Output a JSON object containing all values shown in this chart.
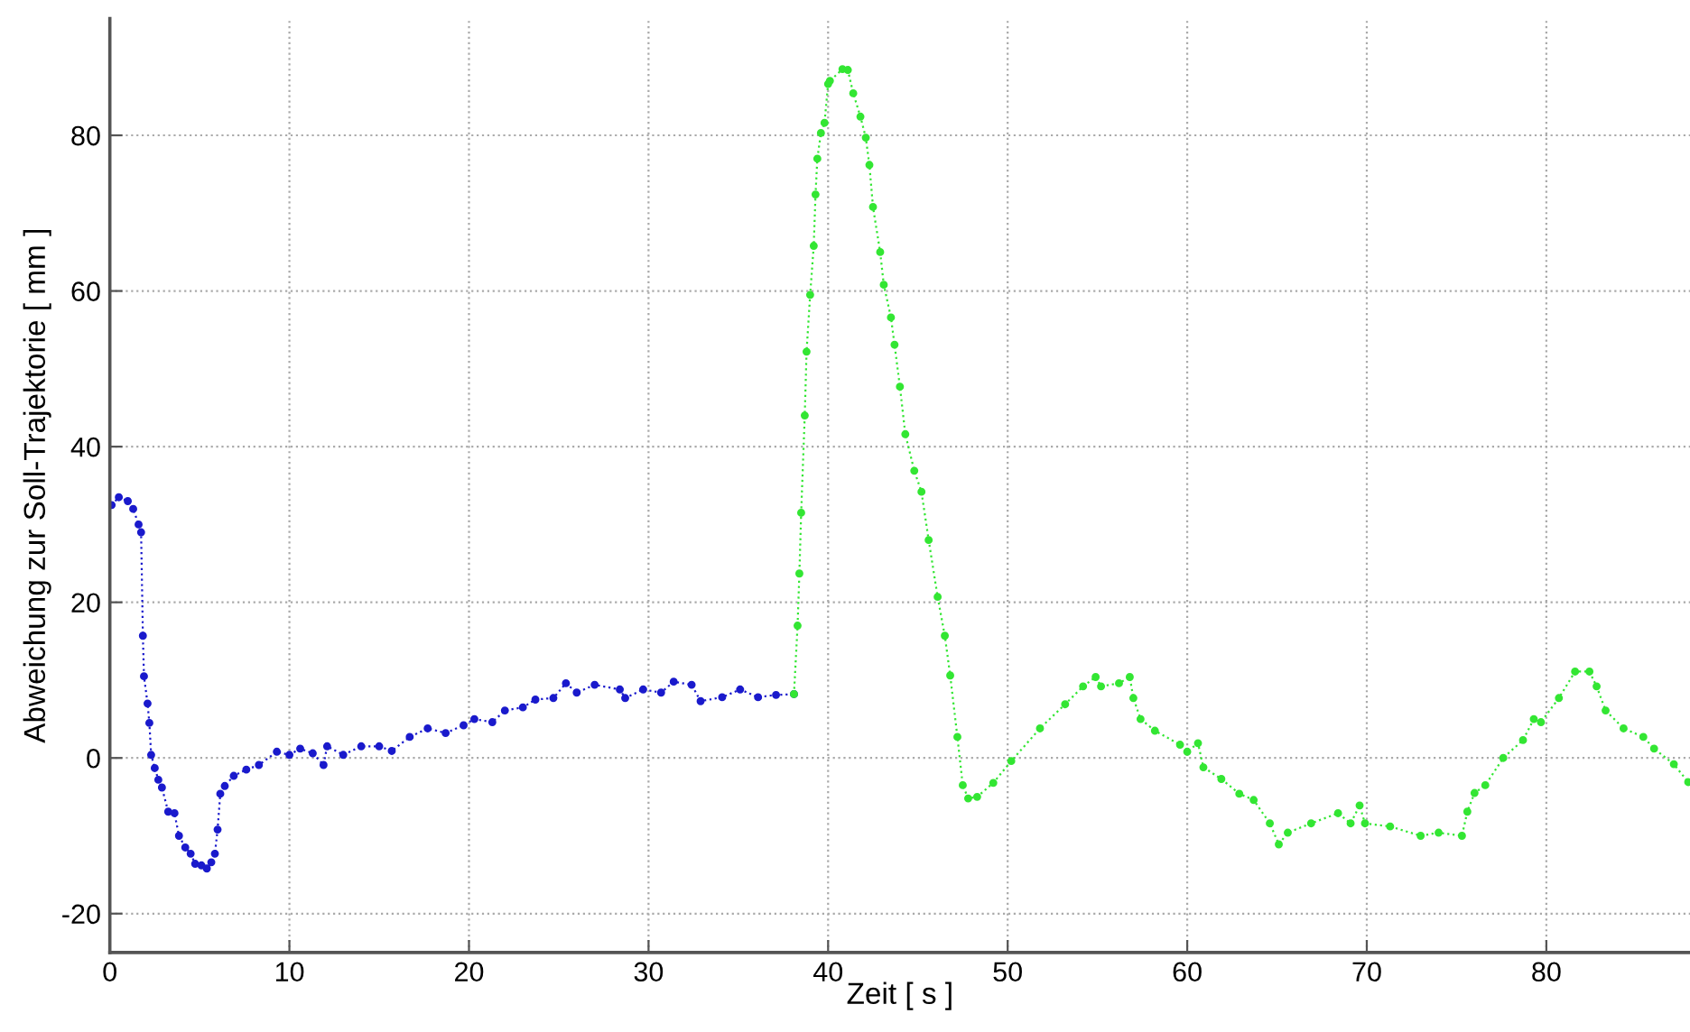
{
  "chart_data": {
    "type": "line",
    "xlabel": "Zeit [ s ]",
    "ylabel": "Abweichung zur Soll-Trajektorie [ mm ]",
    "xlim": [
      0,
      88
    ],
    "xticks": [
      0,
      10,
      20,
      30,
      40,
      50,
      60,
      70,
      80
    ],
    "ylim": [
      -25,
      95
    ],
    "yticks": [
      -20,
      0,
      20,
      40,
      60,
      80
    ],
    "grid": true,
    "marker": "circle",
    "line_style": "dotted",
    "series": [
      {
        "color": "#1a1acc",
        "x": [
          0.1,
          0.5,
          1.0,
          1.3,
          1.6,
          1.74,
          1.84,
          1.9,
          2.1,
          2.2,
          2.3,
          2.5,
          2.7,
          2.9,
          3.25,
          3.6,
          3.85,
          4.2,
          4.5,
          4.75,
          5.1,
          5.4,
          5.65,
          5.85,
          6.0,
          6.15,
          6.4,
          6.9,
          7.6,
          8.3,
          9.3,
          10.0,
          10.6,
          11.3,
          11.9,
          12.1,
          13.0,
          14.0,
          15.0,
          15.7,
          16.7,
          17.7,
          18.7,
          19.7,
          20.3,
          21.3,
          22.0,
          23.0,
          23.7,
          24.7,
          25.4,
          26.0,
          27.0,
          28.4,
          28.7,
          29.7,
          30.7,
          31.4,
          32.4,
          32.9,
          34.1,
          35.1,
          36.1,
          37.1,
          38.1
        ],
        "values": [
          32.5,
          33.5,
          33,
          32,
          30,
          29,
          15.7,
          10.5,
          7,
          4.5,
          0.4,
          -1.3,
          -2.8,
          -3.8,
          -6.9,
          -7.1,
          -10,
          -11.5,
          -12.3,
          -13.6,
          -13.8,
          -14.2,
          -13.4,
          -12.3,
          -9.2,
          -4.6,
          -3.6,
          -2.3,
          -1.5,
          -0.9,
          0.8,
          0.4,
          1.2,
          0.6,
          -0.9,
          1.5,
          0.4,
          1.5,
          1.5,
          0.9,
          2.7,
          3.8,
          3.2,
          4.2,
          5,
          4.6,
          6.1,
          6.5,
          7.5,
          7.7,
          9.6,
          8.4,
          9.4,
          8.8,
          7.7,
          8.8,
          8.4,
          9.8,
          9.4,
          7.3,
          7.8,
          8.8,
          7.8,
          8.1,
          8.2
        ]
      },
      {
        "color": "#33e633",
        "x": [
          38.1,
          38.3,
          38.4,
          38.5,
          38.7,
          38.8,
          39.0,
          39.2,
          39.3,
          39.4,
          39.6,
          39.8,
          40.0,
          40.1,
          40.8,
          41.1,
          41.4,
          41.8,
          42.1,
          42.3,
          42.5,
          42.9,
          43.1,
          43.5,
          43.7,
          44.0,
          44.3,
          44.8,
          45.2,
          45.6,
          46.1,
          46.5,
          46.8,
          47.2,
          47.5,
          47.8,
          48.3,
          49.2,
          50.2,
          51.8,
          53.2,
          54.2,
          54.9,
          55.2,
          56.2,
          56.8,
          57.0,
          57.4,
          58.2,
          59.6,
          60.0,
          60.6,
          60.9,
          61.9,
          62.9,
          63.7,
          64.6,
          65.1,
          65.6,
          66.9,
          68.4,
          69.1,
          69.6,
          69.9,
          71.3,
          73.0,
          74.0,
          75.3,
          75.6,
          76.0,
          76.6,
          77.6,
          78.7,
          79.3,
          79.7,
          80.7,
          81.6,
          82.4,
          82.8,
          83.3,
          84.3,
          85.4,
          86.0,
          87.1,
          87.9
        ],
        "values": [
          8.2,
          17,
          23.7,
          31.5,
          44,
          52.2,
          59.5,
          65.8,
          72.4,
          77,
          80.3,
          81.6,
          86.6,
          87,
          88.5,
          88.4,
          85.4,
          82.4,
          79.7,
          76.2,
          70.8,
          65,
          60.8,
          56.6,
          53.1,
          47.7,
          41.6,
          36.9,
          34.2,
          28,
          20.7,
          15.7,
          10.6,
          2.7,
          -3.5,
          -5.2,
          -5,
          -3.2,
          -0.4,
          3.8,
          6.9,
          9.2,
          10.4,
          9.2,
          9.6,
          10.4,
          7.7,
          5,
          3.5,
          1.7,
          0.8,
          1.9,
          -1.2,
          -2.7,
          -4.6,
          -5.4,
          -8.4,
          -11.1,
          -9.6,
          -8.4,
          -7.1,
          -8.4,
          -6.1,
          -8.4,
          -8.8,
          -10,
          -9.6,
          -10,
          -6.9,
          -4.5,
          -3.5,
          0,
          2.3,
          5,
          4.6,
          7.7,
          11.1,
          11.1,
          9.2,
          6.1,
          3.8,
          2.7,
          1.2,
          -0.8,
          -3.1
        ]
      }
    ]
  }
}
